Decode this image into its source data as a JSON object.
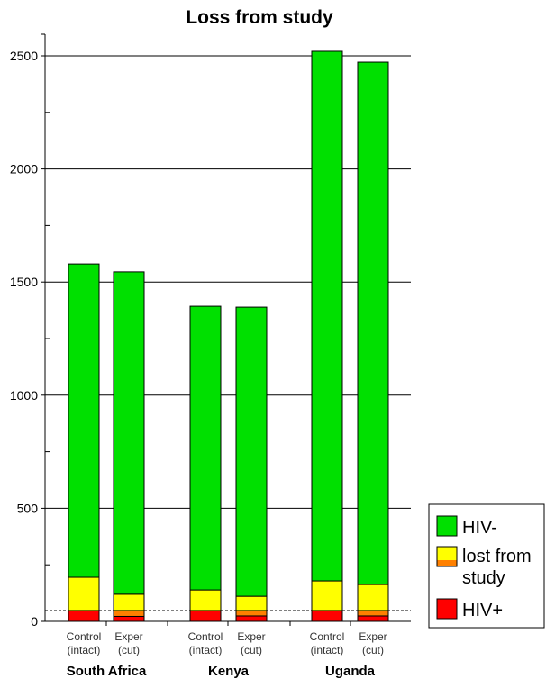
{
  "chart_data": {
    "type": "bar",
    "stacked": true,
    "title": "Loss from study",
    "xlabel": "",
    "ylabel": "",
    "ylim": [
      0,
      2600
    ],
    "yticks": [
      0,
      500,
      1000,
      1500,
      2000,
      2500
    ],
    "grid": "horizontal at major ticks",
    "legend_placement": "bottom-right",
    "groups": [
      {
        "name": "South Africa",
        "bars": [
          {
            "label1": "Control",
            "label2": "(intact)",
            "segments": [
              48,
              0,
              147,
              1385
            ]
          },
          {
            "label1": "Exper",
            "label2": "(cut)",
            "segments": [
              22,
              26,
              72,
              1425
            ]
          }
        ]
      },
      {
        "name": "Kenya",
        "bars": [
          {
            "label1": "Control",
            "label2": "(intact)",
            "segments": [
              48,
              0,
              91,
              1254
            ]
          },
          {
            "label1": "Exper",
            "label2": "(cut)",
            "segments": [
              24,
              24,
              63,
              1278
            ]
          }
        ]
      },
      {
        "name": "Uganda",
        "bars": [
          {
            "label1": "Control",
            "label2": "(intact)",
            "segments": [
              48,
              0,
              131,
              2341
            ]
          },
          {
            "label1": "Exper",
            "label2": "(cut)",
            "segments": [
              24,
              24,
              115,
              2309
            ]
          }
        ]
      }
    ],
    "segment_colors": [
      "#ff0000",
      "#ff8000",
      "#ffff00",
      "#00e000"
    ],
    "reference_line": 48,
    "legend": [
      {
        "label": "HIV-",
        "color": "#00e000"
      },
      {
        "label": "lost from study",
        "line1": "lost from",
        "line2": "study",
        "color": "#ffff00",
        "color2": "#ff8000"
      },
      {
        "label": "HIV+",
        "color": "#ff0000"
      }
    ]
  }
}
